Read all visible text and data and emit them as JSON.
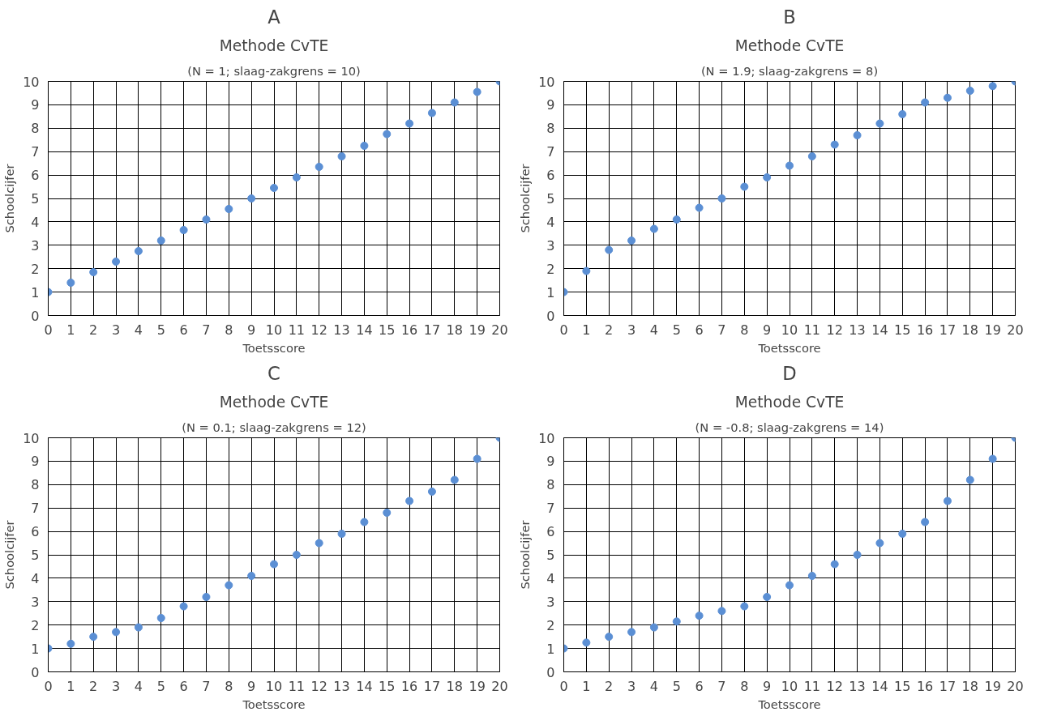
{
  "chart_data": [
    {
      "type": "scatter",
      "title": "A",
      "subtitle": "Methode CvTE",
      "annotations": [
        "(N = 1; slaag-zakgrens = 10)"
      ],
      "xlabel": "Toetsscore",
      "ylabel": "Schoolcijfer",
      "x": [
        0,
        1,
        2,
        3,
        4,
        5,
        6,
        7,
        8,
        9,
        10,
        11,
        12,
        13,
        14,
        15,
        16,
        17,
        18,
        19,
        20
      ],
      "series": [
        {
          "color": "#5b8fd4",
          "values": [
            1,
            1.4,
            1.85,
            2.3,
            2.75,
            3.2,
            3.65,
            4.1,
            4.55,
            5,
            5.45,
            5.9,
            6.35,
            6.8,
            7.25,
            7.75,
            8.2,
            8.65,
            9.1,
            9.55,
            10
          ]
        }
      ],
      "xlim": [
        0,
        20
      ],
      "ylim": [
        0,
        10
      ],
      "xticks": [
        0,
        1,
        2,
        3,
        4,
        5,
        6,
        7,
        8,
        9,
        10,
        11,
        12,
        13,
        14,
        15,
        16,
        17,
        18,
        19,
        20
      ],
      "yticks": [
        0,
        1,
        2,
        3,
        4,
        5,
        6,
        7,
        8,
        9,
        10
      ],
      "grid": true,
      "marker": "circle"
    },
    {
      "type": "scatter",
      "title": "B",
      "subtitle": "Methode CvTE",
      "annotations": [
        "(N = 1.9; slaag-zakgrens = 8)"
      ],
      "xlabel": "Toetsscore",
      "ylabel": "Schoolcijfer",
      "x": [
        0,
        1,
        2,
        3,
        4,
        5,
        6,
        7,
        8,
        9,
        10,
        11,
        12,
        13,
        14,
        15,
        16,
        17,
        18,
        19,
        20
      ],
      "series": [
        {
          "color": "#5b8fd4",
          "values": [
            1,
            1.9,
            2.8,
            3.2,
            3.7,
            4.1,
            4.6,
            5,
            5.5,
            5.9,
            6.4,
            6.8,
            7.3,
            7.7,
            8.2,
            8.6,
            9.1,
            9.3,
            9.6,
            9.8,
            10
          ]
        }
      ],
      "xlim": [
        0,
        20
      ],
      "ylim": [
        0,
        10
      ],
      "xticks": [
        0,
        1,
        2,
        3,
        4,
        5,
        6,
        7,
        8,
        9,
        10,
        11,
        12,
        13,
        14,
        15,
        16,
        17,
        18,
        19,
        20
      ],
      "yticks": [
        0,
        1,
        2,
        3,
        4,
        5,
        6,
        7,
        8,
        9,
        10
      ],
      "grid": true,
      "marker": "circle"
    },
    {
      "type": "scatter",
      "title": "C",
      "subtitle": "Methode CvTE",
      "annotations": [
        "(N = 0.1; slaag-zakgrens = 12)"
      ],
      "xlabel": "Toetsscore",
      "ylabel": "Schoolcijfer",
      "x": [
        0,
        1,
        2,
        3,
        4,
        5,
        6,
        7,
        8,
        9,
        10,
        11,
        12,
        13,
        14,
        15,
        16,
        17,
        18,
        19,
        20
      ],
      "series": [
        {
          "color": "#5b8fd4",
          "values": [
            1,
            1.2,
            1.5,
            1.7,
            1.9,
            2.3,
            2.8,
            3.2,
            3.7,
            4.1,
            4.6,
            5,
            5.5,
            5.9,
            6.4,
            6.8,
            7.3,
            7.7,
            8.2,
            9.1,
            10
          ]
        }
      ],
      "xlim": [
        0,
        20
      ],
      "ylim": [
        0,
        10
      ],
      "xticks": [
        0,
        1,
        2,
        3,
        4,
        5,
        6,
        7,
        8,
        9,
        10,
        11,
        12,
        13,
        14,
        15,
        16,
        17,
        18,
        19,
        20
      ],
      "yticks": [
        0,
        1,
        2,
        3,
        4,
        5,
        6,
        7,
        8,
        9,
        10
      ],
      "grid": true,
      "marker": "circle"
    },
    {
      "type": "scatter",
      "title": "D",
      "subtitle": "Methode CvTE",
      "annotations": [
        "(N = -0.8; slaag-zakgrens = 14)"
      ],
      "xlabel": "Toetsscore",
      "ylabel": "Schoolcijfer",
      "x": [
        0,
        1,
        2,
        3,
        4,
        5,
        6,
        7,
        8,
        9,
        10,
        11,
        12,
        13,
        14,
        15,
        16,
        17,
        18,
        19,
        20
      ],
      "series": [
        {
          "color": "#5b8fd4",
          "values": [
            1,
            1.25,
            1.5,
            1.7,
            1.9,
            2.15,
            2.4,
            2.6,
            2.8,
            3.2,
            3.7,
            4.1,
            4.6,
            5,
            5.5,
            5.9,
            6.4,
            7.3,
            8.2,
            9.1,
            10
          ]
        }
      ],
      "xlim": [
        0,
        20
      ],
      "ylim": [
        0,
        10
      ],
      "xticks": [
        0,
        1,
        2,
        3,
        4,
        5,
        6,
        7,
        8,
        9,
        10,
        11,
        12,
        13,
        14,
        15,
        16,
        17,
        18,
        19,
        20
      ],
      "yticks": [
        0,
        1,
        2,
        3,
        4,
        5,
        6,
        7,
        8,
        9,
        10
      ],
      "grid": true,
      "marker": "circle"
    }
  ]
}
